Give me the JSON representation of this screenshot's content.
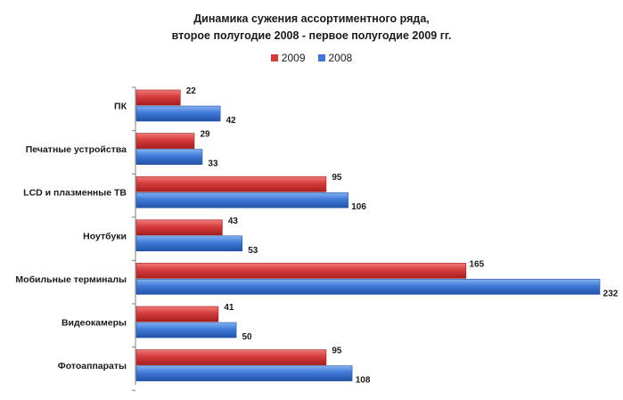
{
  "chart_data": {
    "type": "bar",
    "orientation": "horizontal",
    "title": "Динамика сужения ассортиментного ряда,",
    "subtitle": "второе полугодие 2008 - первое полугодие 2009 гг.",
    "categories": [
      "ПК",
      "Печатные устройства",
      "LCD и плазменные ТВ",
      "Ноутбуки",
      "Мобильные терминалы",
      "Видеокамеры",
      "Фотоаппараты"
    ],
    "series": [
      {
        "name": "2009",
        "values": [
          22,
          29,
          95,
          43,
          165,
          41,
          95
        ],
        "color": "#d43a3a"
      },
      {
        "name": "2008",
        "values": [
          42,
          33,
          106,
          53,
          232,
          50,
          108
        ],
        "color": "#3d78d8"
      }
    ],
    "xlim": [
      0,
      240
    ],
    "legend_position": "top",
    "grid": false,
    "data_labels": true
  }
}
